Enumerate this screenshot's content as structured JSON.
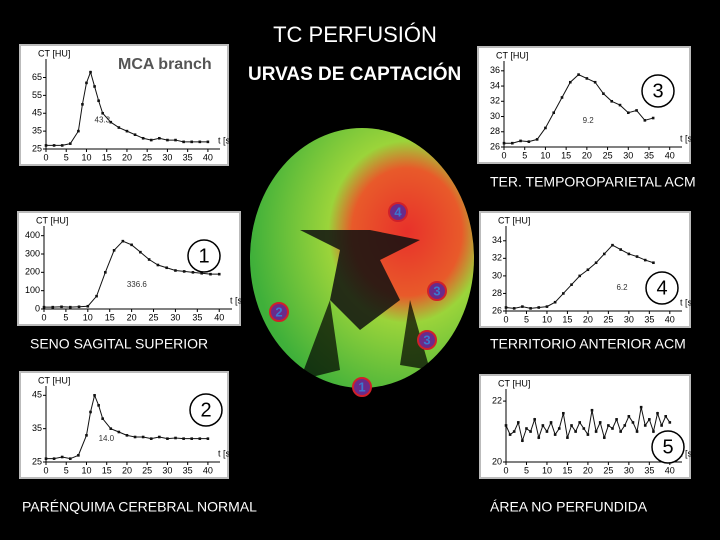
{
  "title": "TC PERFUSIÓN",
  "subtitle": "URVAS DE CAPTACIÓN",
  "captions": [
    "TER. TEMPOROPARIETAL ACM",
    "SENO SAGITAL SUPERIOR",
    "TERRITORIO ANTERIOR ACM",
    "PARÉNQUIMA CEREBRAL NORMAL",
    "ÁREA  NO PERFUNDIDA"
  ],
  "brain_markers": [
    "4",
    "3",
    "2",
    "3",
    "1"
  ],
  "chart_data": [
    {
      "type": "line",
      "label": "MCA branch",
      "ylabel": "CT [HU]",
      "xlabel": "t [s]",
      "annotation": "43.3",
      "x": [
        0,
        2,
        4,
        6,
        8,
        9,
        10,
        11,
        12,
        13,
        14,
        16,
        18,
        20,
        22,
        24,
        26,
        28,
        30,
        32,
        34,
        36,
        38,
        40
      ],
      "values": [
        27,
        27,
        27,
        28,
        35,
        50,
        62,
        68,
        60,
        52,
        45,
        40,
        37,
        35,
        33,
        31,
        30,
        31,
        30,
        30,
        29,
        29,
        29,
        29
      ],
      "xlim": [
        0,
        42
      ],
      "ylim": [
        25,
        72
      ],
      "xticks": [
        0,
        5,
        10,
        15,
        20,
        25,
        30,
        35,
        40
      ],
      "yticks": [
        25,
        35,
        45,
        55,
        65
      ],
      "color": "#111111"
    },
    {
      "type": "line",
      "label": "3",
      "ylabel": "CT [HU]",
      "xlabel": "t [s]",
      "annotation": "9.2",
      "x": [
        0,
        2,
        4,
        6,
        8,
        10,
        12,
        14,
        16,
        18,
        20,
        22,
        24,
        26,
        28,
        30,
        32,
        34,
        36
      ],
      "values": [
        26.5,
        26.5,
        26.8,
        26.7,
        27,
        28.5,
        30.5,
        32.5,
        34.5,
        35.5,
        35,
        34.5,
        33,
        32,
        31.5,
        30.5,
        30.8,
        29.5,
        29.8
      ],
      "xlim": [
        0,
        42
      ],
      "ylim": [
        26,
        36.5
      ],
      "xticks": [
        0,
        5,
        10,
        15,
        20,
        25,
        30,
        35,
        40
      ],
      "yticks": [
        26,
        28,
        30,
        32,
        34,
        36
      ],
      "color": "#111111"
    },
    {
      "type": "line",
      "label": "1",
      "ylabel": "CT [HU]",
      "xlabel": "t [s]",
      "annotation": "336.6",
      "x": [
        0,
        2,
        4,
        6,
        8,
        10,
        12,
        14,
        16,
        18,
        20,
        22,
        24,
        26,
        28,
        30,
        32,
        34,
        36,
        38,
        40
      ],
      "values": [
        10,
        10,
        12,
        10,
        12,
        15,
        70,
        200,
        320,
        370,
        350,
        310,
        270,
        240,
        225,
        210,
        205,
        200,
        195,
        190,
        190
      ],
      "xlim": [
        0,
        42
      ],
      "ylim": [
        0,
        420
      ],
      "xticks": [
        0,
        5,
        10,
        15,
        20,
        25,
        30,
        35,
        40
      ],
      "yticks": [
        0,
        100,
        200,
        300,
        400
      ],
      "color": "#111111"
    },
    {
      "type": "line",
      "label": "4",
      "ylabel": "CT [HU]",
      "xlabel": "t [s]",
      "annotation": "6.2",
      "x": [
        0,
        2,
        4,
        6,
        8,
        10,
        12,
        14,
        16,
        18,
        20,
        22,
        24,
        26,
        28,
        30,
        32,
        34,
        36
      ],
      "values": [
        26.4,
        26.3,
        26.5,
        26.3,
        26.4,
        26.5,
        27,
        28,
        29,
        30,
        30.7,
        31.5,
        32.5,
        33.5,
        33,
        32.5,
        32.2,
        31.8,
        31.5
      ],
      "xlim": [
        0,
        42
      ],
      "ylim": [
        26,
        35
      ],
      "xticks": [
        0,
        5,
        10,
        15,
        20,
        25,
        30,
        35,
        40
      ],
      "yticks": [
        26,
        28,
        30,
        32,
        34
      ],
      "color": "#111111"
    },
    {
      "type": "line",
      "label": "2",
      "ylabel": "CT [HU]",
      "xlabel": "t [s]",
      "annotation": "14.0",
      "x": [
        0,
        2,
        4,
        6,
        8,
        10,
        11,
        12,
        13,
        14,
        16,
        18,
        20,
        22,
        24,
        26,
        28,
        30,
        32,
        34,
        36,
        38,
        40
      ],
      "values": [
        26,
        26,
        26.5,
        26,
        27,
        33,
        40,
        45,
        42,
        38,
        35,
        34,
        33,
        32.5,
        32.5,
        32,
        32.5,
        32,
        32.2,
        32,
        32,
        32,
        32
      ],
      "xlim": [
        0,
        42
      ],
      "ylim": [
        25,
        46
      ],
      "xticks": [
        0,
        5,
        10,
        15,
        20,
        25,
        30,
        35,
        40
      ],
      "yticks": [
        25,
        35,
        45
      ],
      "color": "#111111"
    },
    {
      "type": "line",
      "label": "5",
      "ylabel": "CT [HU]",
      "xlabel": "t [s]",
      "x": [
        0,
        1,
        2,
        3,
        4,
        5,
        6,
        7,
        8,
        9,
        10,
        11,
        12,
        13,
        14,
        15,
        16,
        17,
        18,
        19,
        20,
        21,
        22,
        23,
        24,
        25,
        26,
        27,
        28,
        29,
        30,
        31,
        32,
        33,
        34,
        35,
        36,
        37,
        38,
        39,
        40
      ],
      "values": [
        21.2,
        20.9,
        21.0,
        21.3,
        20.7,
        21.1,
        21.0,
        21.4,
        20.8,
        21.2,
        21.0,
        21.3,
        20.9,
        21.1,
        21.6,
        20.8,
        21.2,
        21.0,
        21.3,
        21.1,
        20.9,
        21.7,
        21.0,
        21.3,
        20.8,
        21.2,
        21.1,
        21.4,
        21.0,
        21.2,
        21.5,
        21.3,
        21.0,
        21.8,
        21.2,
        21.4,
        21.0,
        21.6,
        21.2,
        21.5,
        21.3
      ],
      "xlim": [
        0,
        42
      ],
      "ylim": [
        20,
        22.2
      ],
      "xticks": [
        0,
        5,
        10,
        15,
        20,
        25,
        30,
        35,
        40
      ],
      "yticks": [
        20,
        22
      ],
      "color": "#111111"
    }
  ]
}
